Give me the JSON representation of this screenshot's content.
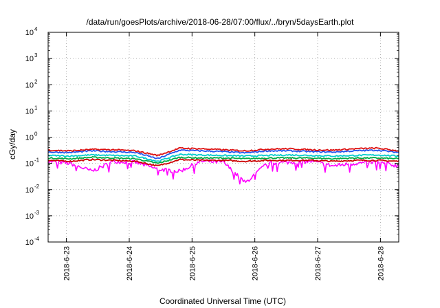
{
  "chart_data": {
    "type": "line",
    "title": "/data/run/goesPlots/archive/2018-06-28/07:00/flux/../bryn/5daysEarth.plot",
    "xlabel": "Coordinated Universal Time (UTC)",
    "ylabel": "cGy/day",
    "y_scale": "log",
    "ylim": [
      0.0001,
      10000
    ],
    "y_ticks": [
      {
        "base": "10",
        "exp": "-4",
        "value": 0.0001
      },
      {
        "base": "10",
        "exp": "-3",
        "value": 0.001
      },
      {
        "base": "10",
        "exp": "-2",
        "value": 0.01
      },
      {
        "base": "10",
        "exp": "-1",
        "value": 0.1
      },
      {
        "base": "10",
        "exp": "0",
        "value": 1
      },
      {
        "base": "10",
        "exp": "1",
        "value": 10
      },
      {
        "base": "10",
        "exp": "2",
        "value": 100
      },
      {
        "base": "10",
        "exp": "3",
        "value": 1000
      },
      {
        "base": "10",
        "exp": "4",
        "value": 10000
      }
    ],
    "xlim": [
      "2018-06-22 17:00",
      "2018-06-28 07:00"
    ],
    "x_ticks": [
      {
        "label": "2018-6-23",
        "value": "2018-06-23"
      },
      {
        "label": "2018-6-24",
        "value": "2018-06-24"
      },
      {
        "label": "2018-6-25",
        "value": "2018-06-25"
      },
      {
        "label": "2018-6-26",
        "value": "2018-06-26"
      },
      {
        "label": "2018-6-27",
        "value": "2018-06-27"
      },
      {
        "label": "2018-6-28",
        "value": "2018-06-28"
      }
    ],
    "grid": true,
    "legend": "none",
    "series": [
      {
        "color": "#ff00ff",
        "sample_values": [
          0.12,
          0.1,
          0.05,
          0.12,
          0.11,
          0.06,
          0.05,
          0.12,
          0.11,
          0.018,
          0.1,
          0.11,
          0.12,
          0.08,
          0.1,
          0.11,
          0.08
        ]
      },
      {
        "color": "#cc0000",
        "sample_values": [
          0.13,
          0.12,
          0.14,
          0.13,
          0.12,
          0.08,
          0.14,
          0.13,
          0.13,
          0.12,
          0.13,
          0.13,
          0.13,
          0.12,
          0.13,
          0.13,
          0.12
        ]
      },
      {
        "color": "#00aa44",
        "sample_values": [
          0.16,
          0.15,
          0.17,
          0.16,
          0.15,
          0.1,
          0.17,
          0.16,
          0.16,
          0.15,
          0.16,
          0.16,
          0.16,
          0.15,
          0.16,
          0.16,
          0.15
        ]
      },
      {
        "color": "#00cccc",
        "sample_values": [
          0.2,
          0.19,
          0.21,
          0.2,
          0.19,
          0.12,
          0.22,
          0.21,
          0.2,
          0.19,
          0.2,
          0.21,
          0.2,
          0.19,
          0.2,
          0.21,
          0.19
        ]
      },
      {
        "color": "#2255ee",
        "sample_values": [
          0.27,
          0.26,
          0.3,
          0.28,
          0.26,
          0.15,
          0.32,
          0.3,
          0.28,
          0.25,
          0.3,
          0.3,
          0.28,
          0.27,
          0.3,
          0.32,
          0.26
        ]
      },
      {
        "color": "#dd1111",
        "sample_values": [
          0.32,
          0.3,
          0.34,
          0.33,
          0.3,
          0.2,
          0.38,
          0.36,
          0.33,
          0.3,
          0.35,
          0.36,
          0.33,
          0.32,
          0.36,
          0.38,
          0.3
        ]
      }
    ]
  }
}
